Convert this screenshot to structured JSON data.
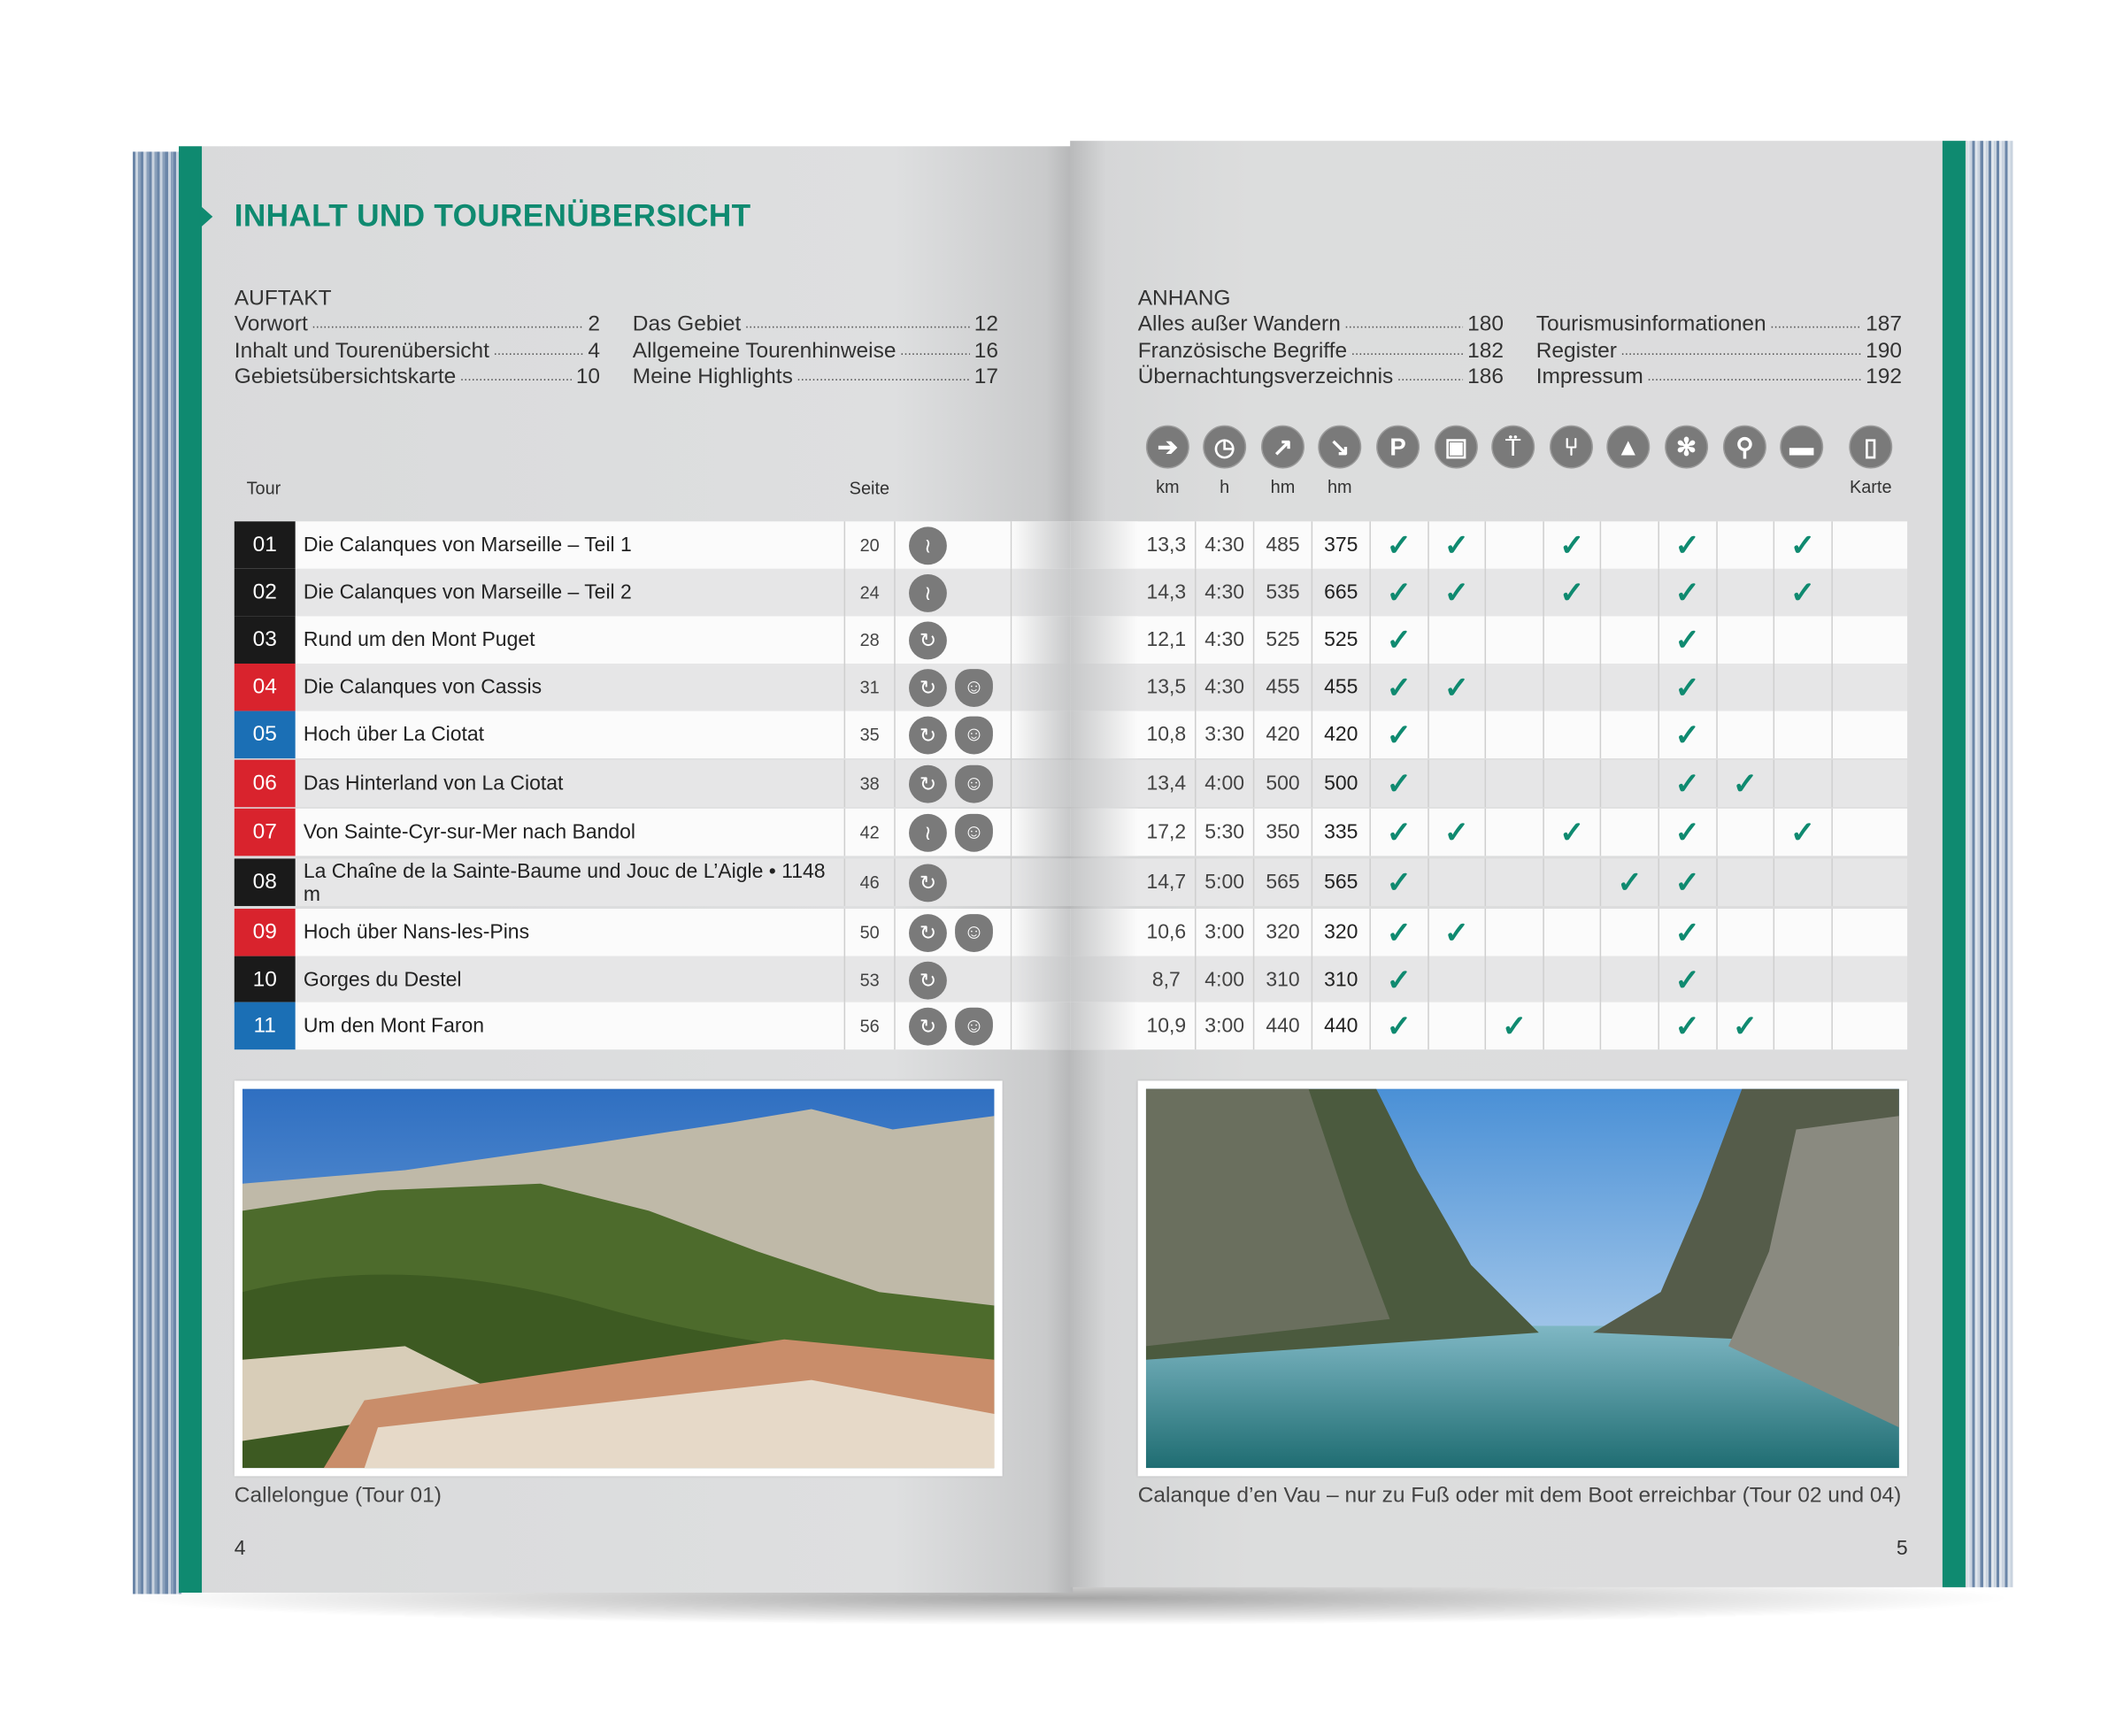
{
  "left_page": {
    "title": "INHALT UND TOURENÜBERSICHT",
    "auftakt": {
      "heading": "AUFTAKT",
      "col1": [
        {
          "label": "Vorwort",
          "page": "2"
        },
        {
          "label": "Inhalt und Tourenübersicht",
          "page": "4"
        },
        {
          "label": "Gebietsübersichtskarte",
          "page": "10"
        }
      ],
      "col2": [
        {
          "label": "Das Gebiet",
          "page": "12"
        },
        {
          "label": "Allgemeine Tourenhinweise",
          "page": "16"
        },
        {
          "label": "Meine Highlights",
          "page": "17"
        }
      ]
    },
    "col_tour": "Tour",
    "col_seite": "Seite",
    "photo_caption": "Callelongue (Tour 01)",
    "page_number": "4"
  },
  "right_page": {
    "anhang": {
      "heading": "ANHANG",
      "col1": [
        {
          "label": "Alles außer Wandern",
          "page": "180"
        },
        {
          "label": "Französische Begriffe",
          "page": "182"
        },
        {
          "label": "Übernachtungsverzeichnis",
          "page": "186"
        }
      ],
      "col2": [
        {
          "label": "Tourismusinformationen",
          "page": "187"
        },
        {
          "label": "Register",
          "page": "190"
        },
        {
          "label": "Impressum",
          "page": "192"
        }
      ]
    },
    "column_icons": [
      {
        "icon": "signpost-icon",
        "label": "km"
      },
      {
        "icon": "clock-icon",
        "label": "h"
      },
      {
        "icon": "ascent-arrow-icon",
        "label": "hm"
      },
      {
        "icon": "descent-arrow-icon",
        "label": "hm"
      },
      {
        "icon": "parking-icon",
        "label": ""
      },
      {
        "icon": "bus-icon",
        "label": ""
      },
      {
        "icon": "cable-car-icon",
        "label": ""
      },
      {
        "icon": "restaurant-icon",
        "label": ""
      },
      {
        "icon": "summit-icon",
        "label": ""
      },
      {
        "icon": "snowflake-icon",
        "label": ""
      },
      {
        "icon": "bicycle-icon",
        "label": ""
      },
      {
        "icon": "bed-icon",
        "label": ""
      },
      {
        "icon": "map-icon",
        "label": "Karte"
      }
    ],
    "photo_caption": "Calanque d’en Vau – nur zu Fuß oder mit dem Boot erreichbar (Tour 02 und 04)",
    "page_number": "5"
  },
  "colors": {
    "accent": "#0f8a70",
    "black": "#1a1a1a",
    "red": "#d9232d",
    "blue": "#1b6fb5"
  },
  "tours": [
    {
      "num": "01",
      "color": "black",
      "name": "Die Calanques von Marseille – Teil 1",
      "seite": "20",
      "icons": [
        "traverse-icon"
      ],
      "km": "13,3",
      "h": "4:30",
      "up": "485",
      "down": "375",
      "checks": [
        1,
        1,
        0,
        1,
        0,
        1,
        0,
        1,
        0
      ]
    },
    {
      "num": "02",
      "color": "black",
      "name": "Die Calanques von Marseille – Teil 2",
      "seite": "24",
      "icons": [
        "traverse-icon"
      ],
      "km": "14,3",
      "h": "4:30",
      "up": "535",
      "down": "665",
      "checks": [
        1,
        1,
        0,
        1,
        0,
        1,
        0,
        1,
        0
      ]
    },
    {
      "num": "03",
      "color": "black",
      "name": "Rund um den Mont Puget",
      "seite": "28",
      "icons": [
        "loop-icon"
      ],
      "km": "12,1",
      "h": "4:30",
      "up": "525",
      "down": "525",
      "checks": [
        1,
        0,
        0,
        0,
        0,
        1,
        0,
        0,
        0
      ]
    },
    {
      "num": "04",
      "color": "red",
      "name": "Die Calanques von Cassis",
      "seite": "31",
      "icons": [
        "loop-icon",
        "kids-bear-icon"
      ],
      "km": "13,5",
      "h": "4:30",
      "up": "455",
      "down": "455",
      "checks": [
        1,
        1,
        0,
        0,
        0,
        1,
        0,
        0,
        0
      ]
    },
    {
      "num": "05",
      "color": "blue",
      "name": "Hoch über La Ciotat",
      "seite": "35",
      "icons": [
        "loop-icon",
        "kids-bear-icon"
      ],
      "km": "10,8",
      "h": "3:30",
      "up": "420",
      "down": "420",
      "checks": [
        1,
        0,
        0,
        0,
        0,
        1,
        0,
        0,
        0
      ]
    },
    {
      "num": "06",
      "color": "red",
      "name": "Das Hinterland von La Ciotat",
      "seite": "38",
      "icons": [
        "loop-icon",
        "kids-bear-icon"
      ],
      "km": "13,4",
      "h": "4:00",
      "up": "500",
      "down": "500",
      "checks": [
        1,
        0,
        0,
        0,
        0,
        1,
        1,
        0,
        0
      ]
    },
    {
      "num": "07",
      "color": "red",
      "name": "Von Sainte-Cyr-sur-Mer nach Bandol",
      "seite": "42",
      "icons": [
        "traverse-icon",
        "kids-bear-icon"
      ],
      "km": "17,2",
      "h": "5:30",
      "up": "350",
      "down": "335",
      "checks": [
        1,
        1,
        0,
        1,
        0,
        1,
        0,
        1,
        0
      ]
    },
    {
      "num": "08",
      "color": "black",
      "name": "La Chaîne de la Sainte-Baume und Jouc de L’Aigle • 1148 m",
      "seite": "46",
      "icons": [
        "loop-icon"
      ],
      "km": "14,7",
      "h": "5:00",
      "up": "565",
      "down": "565",
      "checks": [
        1,
        0,
        0,
        0,
        1,
        1,
        0,
        0,
        0
      ]
    },
    {
      "num": "09",
      "color": "red",
      "name": "Hoch über Nans-les-Pins",
      "seite": "50",
      "icons": [
        "loop-icon",
        "kids-bear-icon"
      ],
      "km": "10,6",
      "h": "3:00",
      "up": "320",
      "down": "320",
      "checks": [
        1,
        1,
        0,
        0,
        0,
        1,
        0,
        0,
        0
      ]
    },
    {
      "num": "10",
      "color": "black",
      "name": "Gorges du Destel",
      "seite": "53",
      "icons": [
        "loop-icon"
      ],
      "km": "8,7",
      "h": "4:00",
      "up": "310",
      "down": "310",
      "checks": [
        1,
        0,
        0,
        0,
        0,
        1,
        0,
        0,
        0
      ]
    },
    {
      "num": "11",
      "color": "blue",
      "name": "Um den Mont Faron",
      "seite": "56",
      "icons": [
        "loop-icon",
        "kids-bear-icon"
      ],
      "km": "10,9",
      "h": "3:00",
      "up": "440",
      "down": "440",
      "checks": [
        1,
        0,
        1,
        0,
        0,
        1,
        1,
        0,
        0
      ]
    }
  ],
  "check_glyph": "✓"
}
